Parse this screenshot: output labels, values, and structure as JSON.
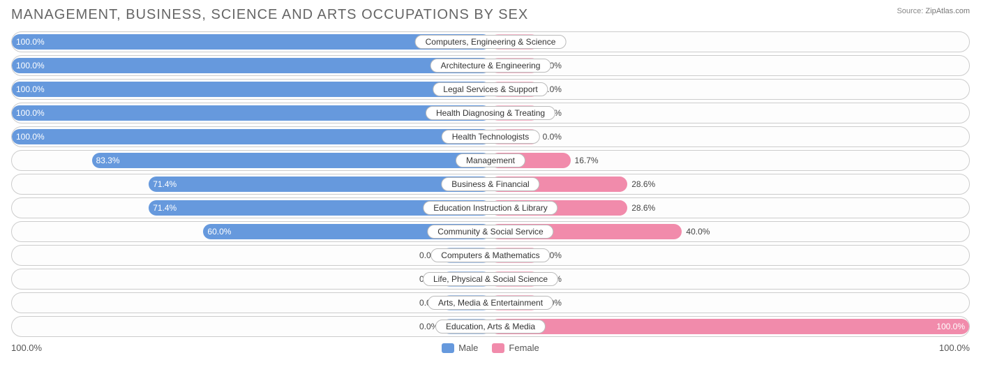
{
  "title": "MANAGEMENT, BUSINESS, SCIENCE AND ARTS OCCUPATIONS BY SEX",
  "source_label": "Source:",
  "source_value": "ZipAtlas.com",
  "chart_type": "diverging-bar",
  "colors": {
    "male": "#6699dd",
    "male_faded": "#a8c4e8",
    "female": "#f18bab",
    "female_faded": "#f7b8cb",
    "border": "#cccccc",
    "bg": "#ffffff",
    "text": "#444444"
  },
  "min_bar_pct": 10,
  "axis": {
    "left": "100.0%",
    "right": "100.0%"
  },
  "legend": {
    "male": "Male",
    "female": "Female"
  },
  "rows": [
    {
      "category": "Computers, Engineering & Science",
      "male_pct": 100.0,
      "female_pct": 0.0,
      "male_label": "100.0%",
      "female_label": "0.0%"
    },
    {
      "category": "Architecture & Engineering",
      "male_pct": 100.0,
      "female_pct": 0.0,
      "male_label": "100.0%",
      "female_label": "0.0%"
    },
    {
      "category": "Legal Services & Support",
      "male_pct": 100.0,
      "female_pct": 0.0,
      "male_label": "100.0%",
      "female_label": "0.0%"
    },
    {
      "category": "Health Diagnosing & Treating",
      "male_pct": 100.0,
      "female_pct": 0.0,
      "male_label": "100.0%",
      "female_label": "0.0%"
    },
    {
      "category": "Health Technologists",
      "male_pct": 100.0,
      "female_pct": 0.0,
      "male_label": "100.0%",
      "female_label": "0.0%"
    },
    {
      "category": "Management",
      "male_pct": 83.3,
      "female_pct": 16.7,
      "male_label": "83.3%",
      "female_label": "16.7%"
    },
    {
      "category": "Business & Financial",
      "male_pct": 71.4,
      "female_pct": 28.6,
      "male_label": "71.4%",
      "female_label": "28.6%"
    },
    {
      "category": "Education Instruction & Library",
      "male_pct": 71.4,
      "female_pct": 28.6,
      "male_label": "71.4%",
      "female_label": "28.6%"
    },
    {
      "category": "Community & Social Service",
      "male_pct": 60.0,
      "female_pct": 40.0,
      "male_label": "60.0%",
      "female_label": "40.0%"
    },
    {
      "category": "Computers & Mathematics",
      "male_pct": 0.0,
      "female_pct": 0.0,
      "male_label": "0.0%",
      "female_label": "0.0%"
    },
    {
      "category": "Life, Physical & Social Science",
      "male_pct": 0.0,
      "female_pct": 0.0,
      "male_label": "0.0%",
      "female_label": "0.0%"
    },
    {
      "category": "Arts, Media & Entertainment",
      "male_pct": 0.0,
      "female_pct": 0.0,
      "male_label": "0.0%",
      "female_label": "0.0%"
    },
    {
      "category": "Education, Arts & Media",
      "male_pct": 0.0,
      "female_pct": 100.0,
      "male_label": "0.0%",
      "female_label": "100.0%"
    }
  ]
}
